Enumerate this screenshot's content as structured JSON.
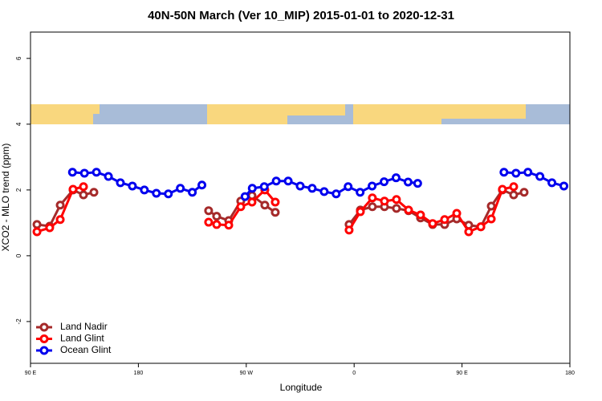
{
  "chart_data": {
    "type": "line",
    "title": "40N-50N March (Ver 10_MIP)   2015-01-01 to 2020-12-31",
    "x_label": "Longitude",
    "y_label": "XCO2 - MLO trend (ppm)",
    "xlim": [
      90,
      540
    ],
    "ylim": [
      -3.27,
      6.8
    ],
    "xticks": [
      {
        "value": 90,
        "label": "90 E"
      },
      180,
      {
        "value": 270,
        "label": "90 W"
      },
      {
        "value": 360,
        "label": "0"
      },
      {
        "value": 450,
        "label": "90 E"
      },
      {
        "value": 540,
        "label": "180"
      }
    ],
    "yticks": [
      -2,
      0,
      2,
      4,
      6
    ],
    "legend": "bottom-left",
    "series": [
      {
        "name": "Land Nadir",
        "color": "#a52a2a",
        "x": [
          95.4,
          106,
          114.8,
          125.5,
          134.2,
          142.9,
          null,
          238.6,
          245.3,
          255.4,
          265.4,
          274.8,
          285.5,
          294.2,
          null,
          355.8,
          365.2,
          375.2,
          385.3,
          395.3,
          405.4,
          415.4,
          425.5,
          435.5,
          445.6,
          455.6,
          465.7,
          474.4,
          483.7,
          493.1,
          501.8
        ],
        "values": [
          0.95,
          0.9,
          1.54,
          2.0,
          1.85,
          1.93,
          null,
          1.37,
          1.2,
          1.07,
          1.66,
          1.83,
          1.54,
          1.32,
          null,
          0.95,
          1.39,
          1.49,
          1.49,
          1.44,
          1.37,
          1.15,
          0.95,
          0.95,
          1.12,
          0.93,
          0.88,
          1.51,
          2.0,
          1.85,
          1.93
        ]
      },
      {
        "name": "Land Glint",
        "color": "#ff0000",
        "x": [
          95.4,
          106,
          114.8,
          125.5,
          134.2,
          null,
          238.6,
          245.3,
          255.4,
          265.4,
          274.8,
          285.5,
          294.2,
          null,
          355.8,
          365.2,
          375.2,
          385.3,
          395.3,
          405.4,
          415.4,
          425.5,
          435.5,
          445.6,
          455.6,
          465.7,
          474.4,
          483.7,
          493.1
        ],
        "values": [
          0.73,
          0.85,
          1.1,
          2.02,
          2.1,
          null,
          1.02,
          0.95,
          0.93,
          1.49,
          1.63,
          2.0,
          1.63,
          null,
          0.78,
          1.34,
          1.76,
          1.66,
          1.71,
          1.39,
          1.24,
          0.98,
          1.1,
          1.29,
          0.73,
          0.88,
          1.12,
          2.02,
          2.1
        ]
      },
      {
        "name": "Ocean Glint",
        "color": "#0000ee",
        "x": [
          125,
          135,
          145,
          155,
          165,
          175,
          185,
          195,
          205,
          215,
          225,
          233,
          null,
          269,
          275,
          285,
          295,
          305,
          315,
          325,
          335,
          345,
          355,
          365,
          375,
          385,
          395,
          405,
          413,
          null,
          485,
          495,
          505,
          515,
          525,
          535
        ],
        "values": [
          2.54,
          2.51,
          2.54,
          2.41,
          2.22,
          2.12,
          2.0,
          1.9,
          1.88,
          2.05,
          1.93,
          2.15,
          null,
          1.8,
          2.05,
          2.1,
          2.27,
          2.27,
          2.12,
          2.05,
          1.95,
          1.88,
          2.1,
          1.93,
          2.12,
          2.25,
          2.37,
          2.24,
          2.2,
          null,
          2.54,
          2.51,
          2.54,
          2.41,
          2.22,
          2.12
        ]
      }
    ]
  }
}
